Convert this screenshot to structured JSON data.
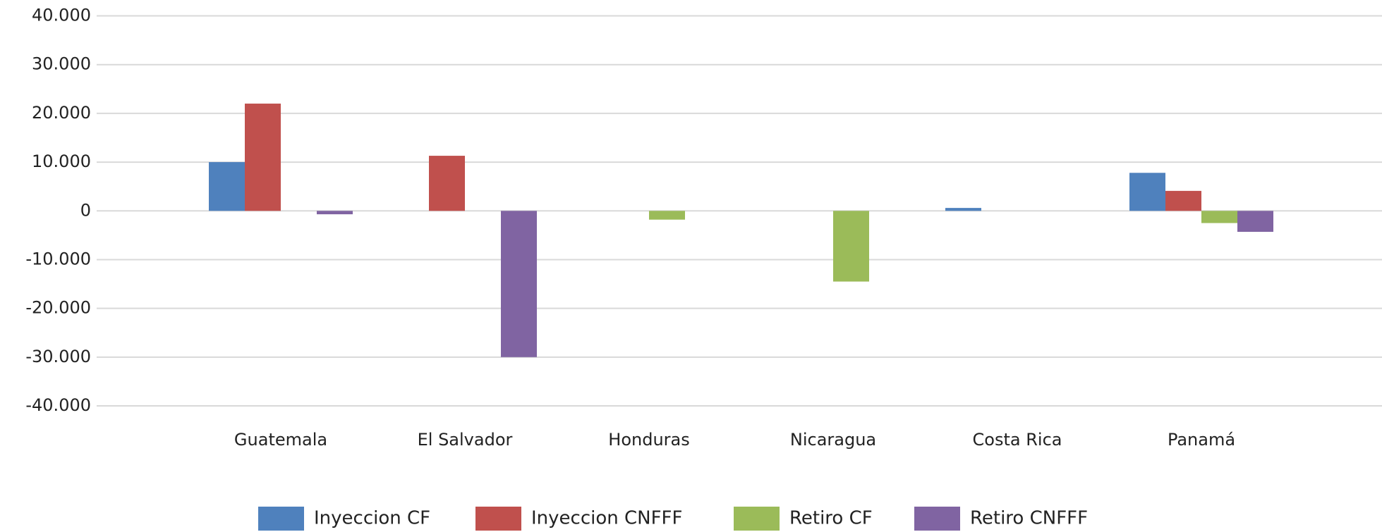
{
  "chart_data": {
    "type": "bar",
    "categories": [
      "Guatemala",
      "El Salvador",
      "Honduras",
      "Nicaragua",
      "Costa Rica",
      "Panamá"
    ],
    "series": [
      {
        "name": "Inyeccion CF",
        "color": "#4f81bd",
        "values": [
          10000,
          0,
          0,
          0,
          600,
          7800
        ]
      },
      {
        "name": "Inyeccion CNFFF",
        "color": "#c0504d",
        "values": [
          22000,
          11300,
          0,
          0,
          0,
          4100
        ]
      },
      {
        "name": "Retiro CF",
        "color": "#9bbb59",
        "values": [
          0,
          0,
          -1800,
          -14500,
          0,
          -2500
        ]
      },
      {
        "name": "Retiro CNFFF",
        "color": "#8064a2",
        "values": [
          -700,
          -30000,
          0,
          0,
          0,
          -4300
        ]
      }
    ],
    "ylim": [
      -40000,
      40000
    ],
    "yticks": [
      {
        "value": 40000,
        "label": "40.000"
      },
      {
        "value": 30000,
        "label": "30.000"
      },
      {
        "value": 20000,
        "label": "20.000"
      },
      {
        "value": 10000,
        "label": "10.000"
      },
      0,
      {
        "value": -10000,
        "label": "-10.000"
      },
      {
        "value": -20000,
        "label": "-20.000"
      },
      {
        "value": -30000,
        "label": "-30.000"
      },
      {
        "value": -40000,
        "label": "-40.000"
      }
    ],
    "grid": true,
    "legend": "bottom"
  }
}
